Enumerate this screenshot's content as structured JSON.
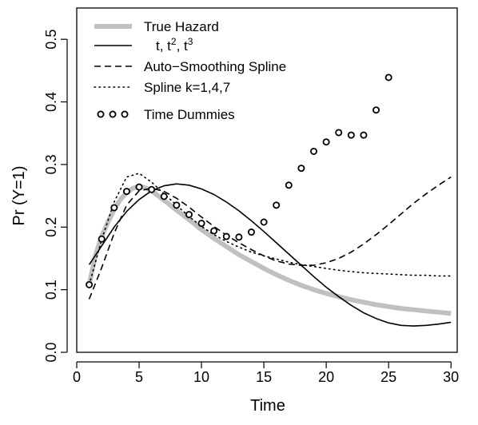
{
  "chart_data": {
    "type": "line",
    "xlabel": "Time",
    "ylabel": "Pr (Y=1)",
    "xlim": [
      0,
      30.5
    ],
    "ylim": [
      0,
      0.55
    ],
    "x_ticks": [
      "0",
      "5",
      "10",
      "15",
      "20",
      "25",
      "30"
    ],
    "y_ticks": [
      "0.0",
      "0.1",
      "0.2",
      "0.3",
      "0.4",
      "0.5"
    ],
    "grid": false,
    "legend_position": "top-left",
    "series": [
      {
        "name": "True Hazard",
        "style": "thick-gray",
        "color": "#c0c0c0",
        "x": [
          1,
          1.5,
          2,
          2.5,
          3,
          3.5,
          4,
          4.5,
          5,
          5.5,
          6,
          7,
          8,
          9,
          10,
          11,
          12,
          13,
          14,
          15,
          16,
          17,
          18,
          19,
          20,
          21,
          22,
          23,
          24,
          25,
          26,
          27,
          28,
          29,
          30
        ],
        "y": [
          0.108,
          0.155,
          0.185,
          0.208,
          0.228,
          0.244,
          0.255,
          0.262,
          0.265,
          0.263,
          0.258,
          0.243,
          0.227,
          0.212,
          0.196,
          0.182,
          0.169,
          0.156,
          0.145,
          0.134,
          0.124,
          0.115,
          0.107,
          0.1,
          0.094,
          0.089,
          0.084,
          0.08,
          0.076,
          0.073,
          0.07,
          0.068,
          0.066,
          0.064,
          0.062
        ]
      },
      {
        "name": "t, t², t³",
        "label_html": "t, t<sup>2</sup>, t<sup>3</sup>",
        "style": "solid",
        "color": "#000000",
        "x": [
          1,
          2,
          3,
          4,
          5,
          6,
          7,
          8,
          9,
          10,
          11,
          12,
          13,
          14,
          15,
          16,
          17,
          18,
          19,
          20,
          21,
          22,
          23,
          24,
          25,
          26,
          27,
          28,
          29,
          30
        ],
        "y": [
          0.14,
          0.17,
          0.2,
          0.225,
          0.244,
          0.258,
          0.266,
          0.269,
          0.267,
          0.261,
          0.252,
          0.24,
          0.226,
          0.21,
          0.193,
          0.175,
          0.157,
          0.139,
          0.121,
          0.104,
          0.089,
          0.075,
          0.063,
          0.054,
          0.047,
          0.043,
          0.042,
          0.043,
          0.045,
          0.048
        ]
      },
      {
        "name": "Auto−Smoothing Spline",
        "style": "dashed",
        "color": "#000000",
        "x": [
          1,
          2,
          3,
          4,
          5,
          6,
          7,
          8,
          9,
          10,
          11,
          12,
          13,
          14,
          15,
          16,
          17,
          18,
          19,
          20,
          21,
          22,
          23,
          24,
          25,
          26,
          27,
          28,
          29,
          30
        ],
        "y": [
          0.085,
          0.135,
          0.19,
          0.235,
          0.258,
          0.262,
          0.257,
          0.246,
          0.232,
          0.216,
          0.201,
          0.187,
          0.175,
          0.164,
          0.154,
          0.146,
          0.141,
          0.139,
          0.139,
          0.143,
          0.15,
          0.16,
          0.173,
          0.188,
          0.204,
          0.221,
          0.238,
          0.253,
          0.267,
          0.28
        ]
      },
      {
        "name": "Spline k=1,4,7",
        "style": "dotted",
        "color": "#000000",
        "x": [
          1,
          2,
          3,
          4,
          5,
          6,
          7,
          8,
          9,
          10,
          11,
          12,
          13,
          14,
          15,
          16,
          17,
          18,
          19,
          20,
          21,
          22,
          23,
          24,
          25,
          26,
          27,
          28,
          29,
          30
        ],
        "y": [
          0.108,
          0.18,
          0.24,
          0.28,
          0.286,
          0.272,
          0.253,
          0.235,
          0.217,
          0.201,
          0.188,
          0.177,
          0.168,
          0.16,
          0.154,
          0.149,
          0.144,
          0.14,
          0.137,
          0.134,
          0.131,
          0.129,
          0.127,
          0.126,
          0.125,
          0.124,
          0.123,
          0.123,
          0.122,
          0.122
        ]
      },
      {
        "name": "Time Dummies",
        "style": "points",
        "color": "#000000",
        "x": [
          1,
          2,
          3,
          4,
          5,
          6,
          7,
          8,
          9,
          10,
          11,
          12,
          13,
          14,
          15,
          16,
          17,
          18,
          19,
          20,
          21,
          22,
          23,
          24,
          25
        ],
        "y": [
          0.108,
          0.181,
          0.231,
          0.257,
          0.264,
          0.26,
          0.249,
          0.235,
          0.22,
          0.206,
          0.194,
          0.185,
          0.184,
          0.192,
          0.208,
          0.235,
          0.267,
          0.294,
          0.321,
          0.336,
          0.351,
          0.347,
          0.347,
          0.387,
          0.439
        ]
      }
    ]
  }
}
